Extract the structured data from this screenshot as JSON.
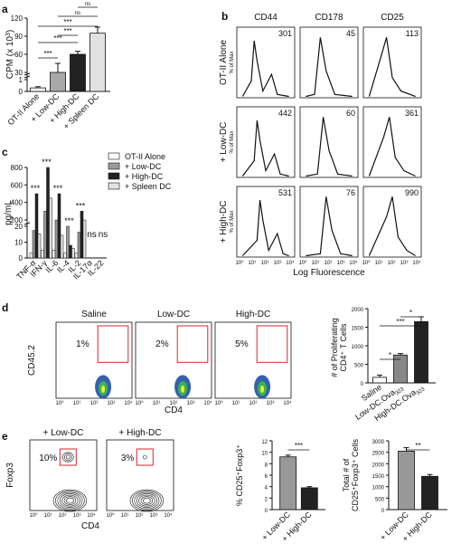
{
  "panel_labels": [
    "a",
    "b",
    "c",
    "d",
    "e"
  ],
  "chart_data": [
    {
      "panel": "a",
      "type": "bar",
      "categories": [
        "OT-II Alone",
        "+ Low-DC",
        "+ High-DC",
        "+ Spleen DC"
      ],
      "values": [
        0.3,
        30,
        60,
        95
      ],
      "errors": [
        0.1,
        15,
        5,
        10
      ],
      "ylabel": "CPM (x 10",
      "ylabel_sup": "3",
      "y_ticks": [
        "0",
        "1",
        "30",
        "60",
        "90",
        "120"
      ],
      "ylim": [
        0,
        120
      ],
      "colors": [
        "#ffffff",
        "#a8a8a8",
        "#222222",
        "#e2e2e2"
      ],
      "significance": [
        "***",
        "***",
        "***",
        "***",
        "ns",
        "ns"
      ]
    },
    {
      "panel": "b",
      "type": "histogram-grid",
      "columns": [
        "CD44",
        "CD178",
        "CD25"
      ],
      "rows": [
        "OT-II Alone",
        "+ Low-DC",
        "+ High-DC"
      ],
      "mfi": [
        [
          "301",
          "45",
          "113"
        ],
        [
          "442",
          "60",
          "361"
        ],
        [
          "531",
          "76",
          "990"
        ]
      ],
      "ylabel": "% of Max",
      "xlabel": "Log Fluorescence",
      "x_ticks": [
        "10⁰",
        "10¹",
        "10²",
        "10³",
        "10⁴"
      ]
    },
    {
      "panel": "c",
      "type": "bar",
      "categories": [
        "TNF-α",
        "IFN-γ",
        "IL-6",
        "IL-4",
        "IL-2",
        "IL-17α",
        "IL-22"
      ],
      "series": [
        {
          "name": "OT-II Alone",
          "values": [
            3,
            5,
            5,
            3,
            3,
            0,
            0
          ]
        },
        {
          "name": "+ Low-DC",
          "values": [
            80,
            300,
            200,
            20,
            60,
            0,
            0
          ]
        },
        {
          "name": "+ High-DC",
          "values": [
            500,
            800,
            500,
            8,
            300,
            0,
            0
          ]
        },
        {
          "name": "+ Spleen DC",
          "values": [
            40,
            450,
            25,
            6,
            200,
            0,
            0
          ]
        }
      ],
      "ylabel": "pg/mL",
      "y_ticks": [
        "0",
        "10",
        "20",
        "200",
        "400",
        "600",
        "800"
      ],
      "significance": [
        "***",
        "***",
        "***",
        "***",
        "***",
        "ns",
        "ns"
      ],
      "colors": [
        "#ffffff",
        "#9a9a9a",
        "#222222",
        "#e2e2e2"
      ]
    },
    {
      "panel": "d-flow",
      "type": "scatter",
      "plots": [
        {
          "title": "Saline",
          "gate_percent": "1%"
        },
        {
          "title": "Low-DC",
          "gate_percent": "2%"
        },
        {
          "title": "High-DC",
          "gate_percent": "5%"
        }
      ],
      "xlabel": "CD4",
      "ylabel": "CD45.2",
      "x_ticks": [
        "10⁰",
        "10¹",
        "10²",
        "10³",
        "10⁴"
      ]
    },
    {
      "panel": "d-bar",
      "type": "bar",
      "categories": [
        "Saline",
        "Low-DC.Ova",
        "High-DC.Ova"
      ],
      "category_subscripts": [
        "",
        "323",
        "323"
      ],
      "values": [
        150,
        750,
        1650
      ],
      "errors": [
        60,
        40,
        130
      ],
      "ylabel_line1": "# of Proliferating",
      "ylabel_line2": "CD4⁺ T Cells",
      "y_ticks": [
        "0",
        "500",
        "1000",
        "1500",
        "2000"
      ],
      "ylim": [
        0,
        2000
      ],
      "significance": [
        "*",
        "***",
        "*"
      ],
      "colors": [
        "#ffffff",
        "#888888",
        "#222222"
      ]
    },
    {
      "panel": "e-flow",
      "type": "contour",
      "plots": [
        {
          "title": "+ Low-DC",
          "gate_percent": "10%"
        },
        {
          "title": "+ High-DC",
          "gate_percent": "3%"
        }
      ],
      "xlabel": "CD4",
      "ylabel": "Foxp3",
      "x_ticks": [
        "10⁰",
        "10¹",
        "10²",
        "10³",
        "10⁴"
      ]
    },
    {
      "panel": "e-bar1",
      "type": "bar",
      "categories": [
        "+ Low-DC",
        "+ High-DC"
      ],
      "values": [
        9.2,
        3.8
      ],
      "errors": [
        0.3,
        0.2
      ],
      "ylabel": "% CD25⁺Foxp3⁺",
      "y_ticks": [
        "0",
        "2",
        "4",
        "6",
        "8",
        "10",
        "12"
      ],
      "ylim": [
        0,
        12
      ],
      "significance": [
        "***"
      ],
      "colors": [
        "#999999",
        "#222222"
      ]
    },
    {
      "panel": "e-bar2",
      "type": "bar",
      "categories": [
        "+ Low-DC",
        "+ High-DC"
      ],
      "values": [
        2550,
        1450
      ],
      "errors": [
        150,
        80
      ],
      "ylabel_line1": "Total # of",
      "ylabel_line2": "CD25⁺Foxp3⁺ Cells",
      "y_ticks": [
        "0",
        "500",
        "1000",
        "1500",
        "2000",
        "2500",
        "3000"
      ],
      "ylim": [
        0,
        3000
      ],
      "significance": [
        "**"
      ],
      "colors": [
        "#999999",
        "#222222"
      ]
    }
  ]
}
